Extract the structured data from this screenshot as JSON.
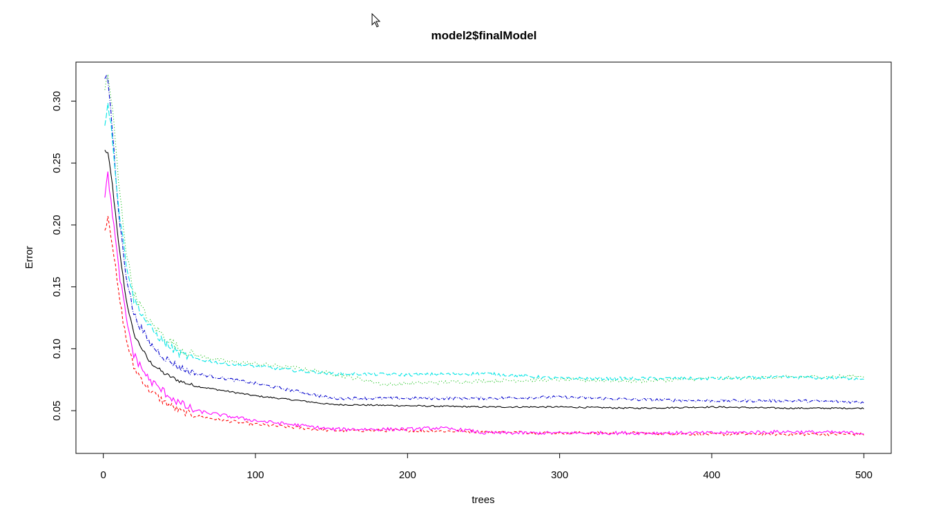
{
  "chart_data": {
    "type": "line",
    "title": "model2$finalModel",
    "xlabel": "trees",
    "ylabel": "Error",
    "xlim": [
      -18,
      518
    ],
    "ylim": [
      0.0155,
      0.3315
    ],
    "xticks": [
      0,
      100,
      200,
      300,
      400,
      500
    ],
    "xtick_labels": [
      "0",
      "100",
      "200",
      "300",
      "400",
      "500"
    ],
    "yticks": [
      0.05,
      0.1,
      0.15,
      0.2,
      0.25,
      0.3
    ],
    "ytick_labels": [
      "0.05",
      "0.10",
      "0.15",
      "0.20",
      "0.25",
      "0.30"
    ],
    "grid": false,
    "legend": "none",
    "series": [
      {
        "color": "#000000",
        "dash": "",
        "noise": 0.0006,
        "x": [
          1,
          3,
          6,
          10,
          15,
          20,
          30,
          40,
          50,
          60,
          80,
          100,
          130,
          150,
          200,
          250,
          300,
          350,
          400,
          450,
          500
        ],
        "values": [
          0.26,
          0.258,
          0.232,
          0.185,
          0.14,
          0.112,
          0.09,
          0.08,
          0.074,
          0.07,
          0.066,
          0.062,
          0.058,
          0.055,
          0.054,
          0.053,
          0.053,
          0.052,
          0.053,
          0.052,
          0.052
        ]
      },
      {
        "color": "#ff0000",
        "dash": "4,3",
        "noise": 0.0012,
        "x": [
          1,
          3,
          6,
          10,
          15,
          20,
          30,
          40,
          50,
          60,
          80,
          100,
          130,
          150,
          200,
          250,
          300,
          350,
          400,
          450,
          500
        ],
        "values": [
          0.195,
          0.208,
          0.185,
          0.145,
          0.108,
          0.085,
          0.067,
          0.057,
          0.05,
          0.046,
          0.042,
          0.039,
          0.036,
          0.034,
          0.034,
          0.033,
          0.032,
          0.032,
          0.031,
          0.031,
          0.031
        ]
      },
      {
        "color": "#00bb00",
        "dash": "1,3",
        "noise": 0.0015,
        "x": [
          1,
          3,
          6,
          10,
          15,
          20,
          30,
          40,
          50,
          60,
          80,
          100,
          130,
          150,
          175,
          185,
          200,
          250,
          300,
          350,
          400,
          450,
          500
        ],
        "values": [
          0.31,
          0.32,
          0.295,
          0.235,
          0.18,
          0.145,
          0.122,
          0.11,
          0.1,
          0.095,
          0.09,
          0.088,
          0.084,
          0.08,
          0.074,
          0.071,
          0.072,
          0.074,
          0.075,
          0.074,
          0.076,
          0.077,
          0.078
        ]
      },
      {
        "color": "#0000cc",
        "dash": "6,2,1,2",
        "noise": 0.0012,
        "x": [
          1,
          3,
          6,
          10,
          15,
          20,
          30,
          40,
          50,
          60,
          80,
          100,
          130,
          150,
          200,
          250,
          300,
          350,
          400,
          450,
          500
        ],
        "values": [
          0.32,
          0.318,
          0.275,
          0.21,
          0.16,
          0.128,
          0.105,
          0.093,
          0.085,
          0.08,
          0.076,
          0.072,
          0.065,
          0.06,
          0.06,
          0.06,
          0.061,
          0.059,
          0.058,
          0.058,
          0.057
        ]
      },
      {
        "color": "#00e5e5",
        "dash": "8,3",
        "noise": 0.0013,
        "x": [
          1,
          3,
          6,
          10,
          15,
          20,
          30,
          40,
          50,
          60,
          80,
          100,
          130,
          150,
          200,
          250,
          300,
          350,
          400,
          450,
          500
        ],
        "values": [
          0.28,
          0.3,
          0.27,
          0.215,
          0.17,
          0.14,
          0.118,
          0.105,
          0.096,
          0.092,
          0.088,
          0.086,
          0.082,
          0.08,
          0.079,
          0.08,
          0.076,
          0.076,
          0.076,
          0.077,
          0.076
        ]
      },
      {
        "color": "#ff00ff",
        "dash": "",
        "noise": 0.0014,
        "x": [
          1,
          3,
          6,
          10,
          15,
          20,
          30,
          40,
          50,
          60,
          80,
          100,
          130,
          150,
          200,
          220,
          240,
          250,
          300,
          350,
          400,
          450,
          500
        ],
        "values": [
          0.225,
          0.24,
          0.21,
          0.165,
          0.125,
          0.095,
          0.075,
          0.065,
          0.056,
          0.05,
          0.046,
          0.042,
          0.038,
          0.035,
          0.035,
          0.036,
          0.034,
          0.032,
          0.032,
          0.032,
          0.032,
          0.033,
          0.032
        ]
      }
    ]
  }
}
